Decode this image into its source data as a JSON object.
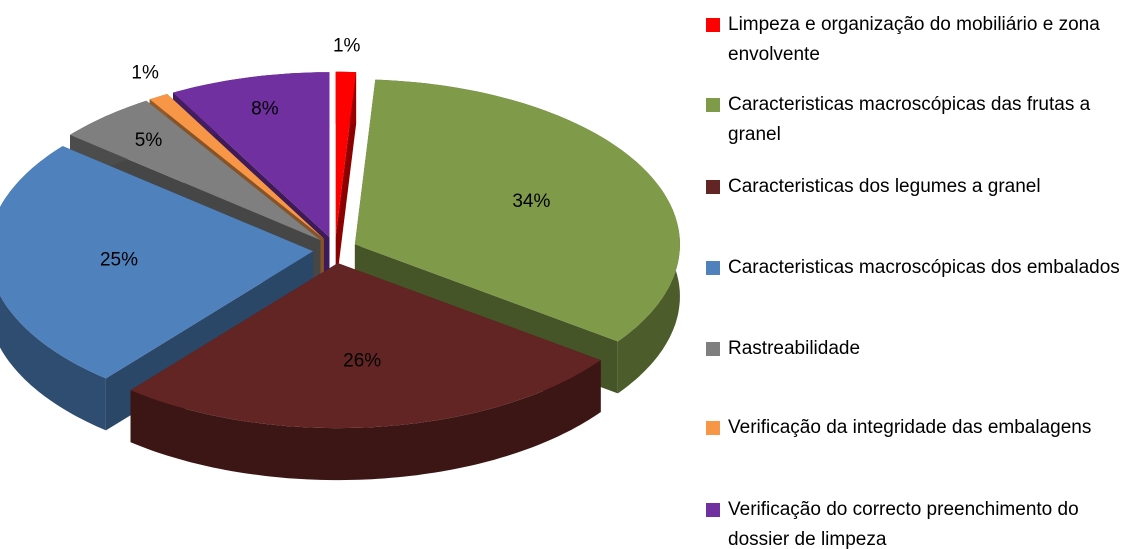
{
  "chart_data": {
    "type": "pie3d",
    "categories": [
      "Limpeza e organização do mobiliário e zona envolvente",
      " Caracteristicas macroscópicas das frutas a granel",
      "Caracteristicas dos legumes a granel",
      "Caracteristicas macroscópicas dos embalados",
      "Rastreabilidade",
      "Verificação da integridade das embalagens",
      "Verificação do correcto preenchimento do dossier de limpeza"
    ],
    "values": [
      1,
      34,
      26,
      25,
      5,
      1,
      8
    ],
    "value_labels": [
      "1%",
      "34%",
      "26%",
      "25%",
      "5%",
      "1%",
      "8%"
    ],
    "colors": [
      "#ff0000",
      "#7f9a48",
      "#632523",
      "#4f81bd",
      "#7f7f7f",
      "#f79646",
      "#7030a0"
    ],
    "legend": "right"
  }
}
